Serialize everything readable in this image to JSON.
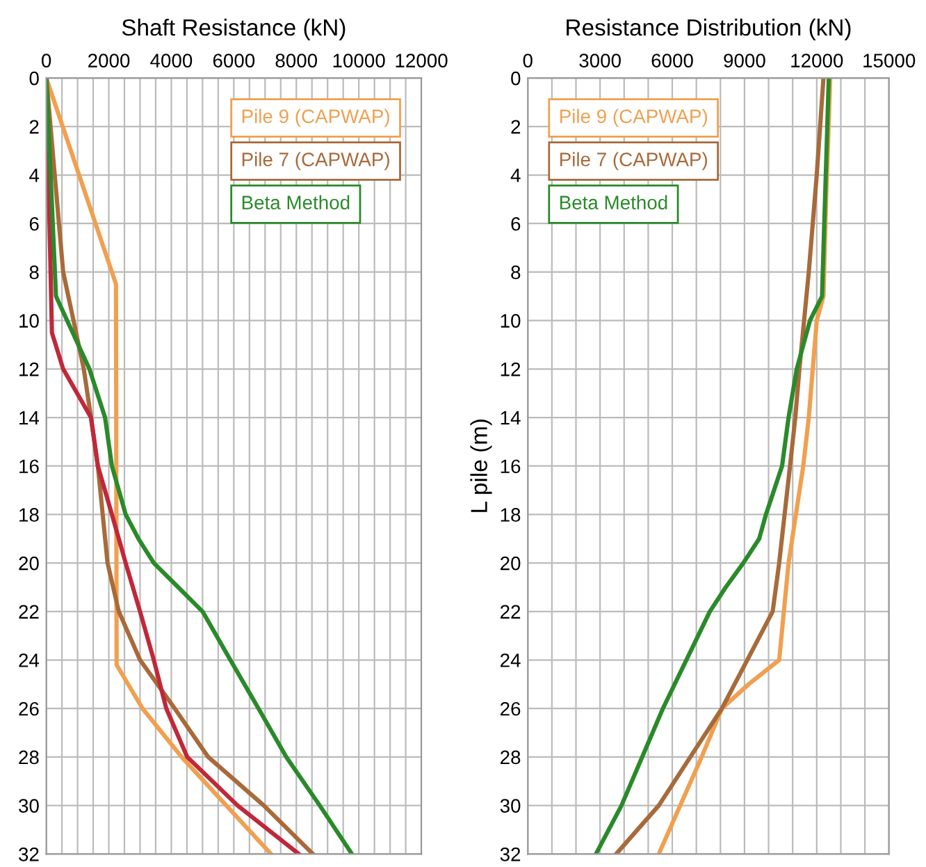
{
  "chart_data": [
    {
      "type": "line",
      "title": "Shaft Resistance (kN)",
      "xlim": [
        0,
        12000
      ],
      "ylim": [
        32,
        0
      ],
      "xticks": [
        0,
        {
          "value": 500,
          "label": null
        },
        {
          "value": 1000,
          "label": null
        },
        {
          "value": 1500,
          "label": null
        },
        2000,
        {
          "value": 2500,
          "label": null
        },
        {
          "value": 3000,
          "label": null
        },
        {
          "value": 3500,
          "label": null
        },
        4000,
        {
          "value": 4500,
          "label": null
        },
        {
          "value": 5000,
          "label": null
        },
        {
          "value": 5500,
          "label": null
        },
        6000,
        {
          "value": 6500,
          "label": null
        },
        {
          "value": 7000,
          "label": null
        },
        {
          "value": 7500,
          "label": null
        },
        8000,
        {
          "value": 8500,
          "label": null
        },
        {
          "value": 9000,
          "label": null
        },
        {
          "value": 9500,
          "label": null
        },
        10000,
        {
          "value": 10500,
          "label": null
        },
        {
          "value": 11000,
          "label": null
        },
        {
          "value": 11500,
          "label": null
        },
        12000
      ],
      "yticks": [
        0,
        2,
        4,
        6,
        8,
        10,
        12,
        14,
        16,
        18,
        20,
        22,
        24,
        26,
        28,
        30,
        32
      ],
      "grid": true,
      "legend": "top right",
      "series": [
        {
          "name": "Pile 9 (CAPWAP)",
          "color": "#f0a050",
          "x": [
            0,
            2230,
            2250,
            3080,
            4330,
            5760,
            7190
          ],
          "values": [
            0,
            8.5,
            24.2,
            26,
            28,
            30,
            32
          ]
        },
        {
          "name": "Pile 7 (CAPWAP)",
          "color": "#a86a3a",
          "x": [
            0,
            540,
            1200,
            1430,
            1650,
            1960,
            2320,
            3000,
            4110,
            5180,
            6960,
            8530
          ],
          "values": [
            0,
            8,
            12,
            14,
            16,
            20,
            22,
            24,
            26,
            28,
            30,
            32
          ]
        },
        {
          "color": "#c0283a",
          "x": [
            0,
            180,
            540,
            1430,
            1650,
            2100,
            2540,
            3000,
            3440,
            3840,
            4510,
            6120,
            8080
          ],
          "values": [
            0,
            10.5,
            12,
            14,
            16,
            18,
            20,
            22,
            24,
            26,
            28,
            30,
            32
          ]
        },
        {
          "name": "Beta Method",
          "color": "#2a8a2a",
          "x": [
            0,
            310,
            1380,
            1880,
            2100,
            2540,
            2950,
            3440,
            5000,
            5890,
            6790,
            7680,
            8750,
            9780
          ],
          "values": [
            0,
            9,
            12,
            14,
            16,
            18,
            19,
            20,
            22,
            24,
            26,
            28,
            30,
            32
          ]
        }
      ]
    },
    {
      "type": "line",
      "title": "Resistance Distribution (kN)",
      "ylabel": "L pile (m)",
      "xlim": [
        0,
        15000
      ],
      "ylim": [
        32,
        0
      ],
      "xticks": [
        0,
        {
          "value": 1000,
          "label": null
        },
        {
          "value": 2000,
          "label": null
        },
        3000,
        {
          "value": 4000,
          "label": null
        },
        {
          "value": 5000,
          "label": null
        },
        6000,
        {
          "value": 7000,
          "label": null
        },
        {
          "value": 8000,
          "label": null
        },
        9000,
        {
          "value": 10000,
          "label": null
        },
        {
          "value": 11000,
          "label": null
        },
        12000,
        {
          "value": 13000,
          "label": null
        },
        {
          "value": 14000,
          "label": null
        },
        15000
      ],
      "yticks": [
        0,
        2,
        4,
        6,
        8,
        10,
        12,
        14,
        16,
        18,
        20,
        22,
        24,
        26,
        28,
        30,
        32
      ],
      "grid": true,
      "legend": "top left",
      "series": [
        {
          "name": "Pile 9 (CAPWAP)",
          "color": "#f0a050",
          "x": [
            12560,
            12390,
            12280,
            12000,
            11670,
            11440,
            10830,
            10440,
            9170,
            8060,
            7220,
            5440
          ],
          "values": [
            0,
            5,
            9,
            10,
            14,
            16,
            20,
            24,
            25,
            26,
            28,
            32
          ]
        },
        {
          "name": "Pile 7 (CAPWAP)",
          "color": "#a86a3a",
          "x": [
            12280,
            12000,
            11670,
            11280,
            11110,
            10890,
            10440,
            10170,
            8060,
            5440,
            3670
          ],
          "values": [
            0,
            4,
            8,
            12,
            14,
            16,
            20,
            22,
            26,
            30,
            32
          ]
        },
        {
          "name": "Beta Method",
          "color": "#2a8a2a",
          "x": [
            12500,
            12220,
            11720,
            11170,
            10830,
            10560,
            9890,
            9610,
            8950,
            8220,
            7560,
            5610,
            3890,
            2830
          ],
          "values": [
            0,
            9,
            10,
            12,
            14,
            16,
            18,
            19,
            20,
            21,
            22,
            26,
            30,
            32
          ]
        }
      ]
    }
  ]
}
